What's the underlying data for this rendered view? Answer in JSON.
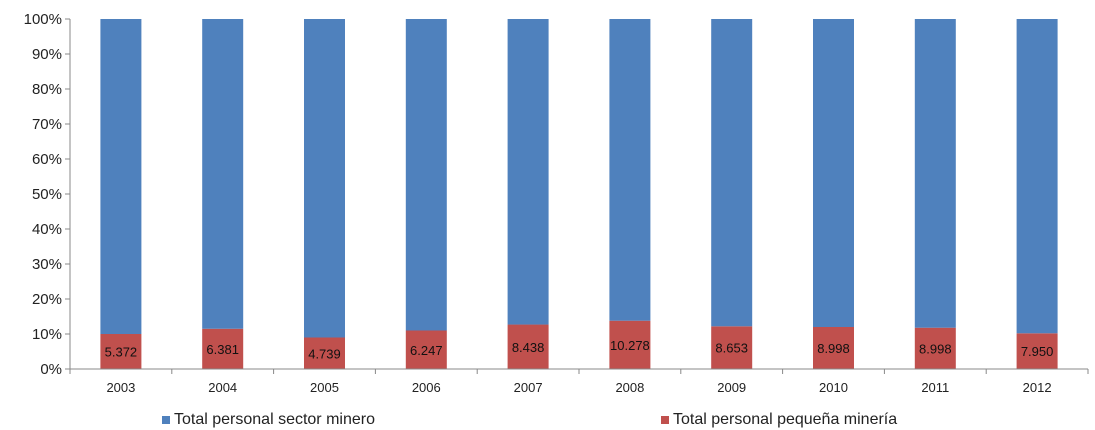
{
  "chart_data": {
    "type": "bar",
    "stacked": "percent",
    "categories": [
      "2003",
      "2004",
      "2005",
      "2006",
      "2007",
      "2008",
      "2009",
      "2010",
      "2011",
      "2012"
    ],
    "series": [
      {
        "name": "Total personal sector minero",
        "color": "#4F81BD",
        "percent": [
          90,
          88.5,
          91,
          89,
          87.3,
          86.2,
          87.8,
          88,
          88.2,
          89.8
        ]
      },
      {
        "name": "Total personal pequeña minería",
        "color": "#C0504D",
        "percent": [
          10,
          11.5,
          9,
          11,
          12.7,
          13.8,
          12.2,
          12,
          11.8,
          10.2
        ],
        "data_labels": [
          "5.372",
          "6.381",
          "4.739",
          "6.247",
          "8.438",
          "10.278",
          "8.653",
          "8.998",
          "8.998",
          "7.950"
        ]
      }
    ],
    "y_ticks": [
      "0%",
      "10%",
      "20%",
      "30%",
      "40%",
      "50%",
      "60%",
      "70%",
      "80%",
      "90%",
      "100%"
    ],
    "ylim": [
      0,
      100
    ],
    "grid": false,
    "legend": "bottom"
  }
}
